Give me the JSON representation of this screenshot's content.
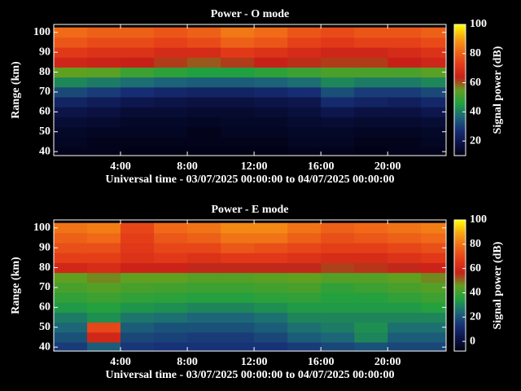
{
  "chart_data": [
    {
      "type": "heatmap",
      "title": "Power - O mode",
      "xlabel": "Universal time - 03/07/2025 00:00:00 to 04/07/2025 00:00:00",
      "ylabel": "Range (km)",
      "colorbar_label": "Signal power (dB)",
      "x": [
        1,
        3,
        5,
        7,
        9,
        11,
        13,
        15,
        17,
        19,
        21,
        23
      ],
      "y": [
        40,
        45,
        50,
        55,
        60,
        65,
        70,
        75,
        80,
        85,
        90,
        95,
        100
      ],
      "z": [
        [
          12,
          12,
          11,
          11,
          11,
          11,
          11,
          12,
          12,
          11,
          12,
          12
        ],
        [
          13,
          12,
          12,
          12,
          12,
          12,
          12,
          13,
          13,
          12,
          12,
          13
        ],
        [
          14,
          13,
          13,
          13,
          12,
          13,
          13,
          14,
          14,
          13,
          13,
          14
        ],
        [
          16,
          15,
          14,
          14,
          13,
          14,
          14,
          15,
          16,
          15,
          15,
          16
        ],
        [
          19,
          18,
          16,
          16,
          15,
          15,
          16,
          17,
          20,
          18,
          18,
          20
        ],
        [
          24,
          22,
          20,
          19,
          18,
          18,
          19,
          20,
          26,
          24,
          23,
          25
        ],
        [
          32,
          30,
          27,
          25,
          24,
          24,
          25,
          27,
          33,
          30,
          30,
          32
        ],
        [
          42,
          40,
          38,
          36,
          35,
          35,
          36,
          38,
          42,
          40,
          40,
          42
        ],
        [
          55,
          54,
          50,
          48,
          46,
          46,
          48,
          50,
          52,
          52,
          52,
          54
        ],
        [
          66,
          65,
          64,
          62,
          60,
          62,
          64,
          63,
          62,
          62,
          64,
          66
        ],
        [
          72,
          70,
          70,
          68,
          68,
          72,
          70,
          68,
          66,
          66,
          68,
          70
        ],
        [
          78,
          76,
          76,
          74,
          76,
          80,
          78,
          74,
          72,
          74,
          74,
          76
        ],
        [
          82,
          80,
          80,
          78,
          80,
          84,
          82,
          78,
          76,
          78,
          78,
          80
        ]
      ],
      "xlim": [
        0,
        23.5
      ],
      "ylim": [
        38,
        104
      ],
      "xticks": [
        {
          "value": 4,
          "label": "4:00"
        },
        {
          "value": 8,
          "label": "8:00"
        },
        {
          "value": 12,
          "label": "12:00"
        },
        {
          "value": 16,
          "label": "16:00"
        },
        {
          "value": 20,
          "label": "20:00"
        }
      ],
      "yticks": [
        40,
        50,
        60,
        70,
        80,
        90,
        100
      ],
      "clim": [
        10,
        100
      ],
      "cticks": [
        20,
        40,
        60,
        80,
        100
      ],
      "colors": [
        "#000010",
        "#0c1448",
        "#183078",
        "#1c6878",
        "#20a040",
        "#60a020",
        "#c82018",
        "#e43c18",
        "#f06a18",
        "#f8a410",
        "#ffff00"
      ]
    },
    {
      "type": "heatmap",
      "title": "Power - E mode",
      "xlabel": "Universal time - 03/07/2025 00:00:00 to 04/07/2025 00:00:00",
      "ylabel": "Range (km)",
      "colorbar_label": "Signal power (dB)",
      "x": [
        1,
        3,
        5,
        7,
        9,
        11,
        13,
        15,
        17,
        19,
        21,
        23
      ],
      "y": [
        40,
        45,
        50,
        55,
        60,
        65,
        70,
        75,
        80,
        85,
        90,
        95,
        100
      ],
      "z": [
        [
          16,
          22,
          15,
          14,
          14,
          14,
          14,
          16,
          18,
          20,
          18,
          18
        ],
        [
          20,
          60,
          18,
          17,
          16,
          16,
          18,
          22,
          24,
          30,
          22,
          22
        ],
        [
          24,
          70,
          22,
          20,
          20,
          20,
          22,
          26,
          28,
          32,
          26,
          26
        ],
        [
          28,
          32,
          27,
          26,
          24,
          24,
          26,
          30,
          30,
          30,
          30,
          30
        ],
        [
          34,
          36,
          33,
          32,
          30,
          30,
          32,
          34,
          34,
          34,
          34,
          36
        ],
        [
          38,
          40,
          38,
          37,
          36,
          36,
          37,
          38,
          36,
          36,
          38,
          40
        ],
        [
          42,
          44,
          42,
          41,
          40,
          40,
          41,
          42,
          38,
          40,
          42,
          44
        ],
        [
          46,
          48,
          46,
          46,
          44,
          44,
          45,
          46,
          44,
          44,
          46,
          48
        ],
        [
          60,
          62,
          58,
          58,
          56,
          56,
          56,
          56,
          54,
          55,
          56,
          58
        ],
        [
          68,
          68,
          64,
          66,
          64,
          66,
          66,
          64,
          62,
          62,
          64,
          66
        ],
        [
          72,
          72,
          66,
          70,
          70,
          74,
          72,
          70,
          68,
          68,
          70,
          72
        ],
        [
          76,
          78,
          68,
          74,
          76,
          80,
          80,
          76,
          72,
          74,
          76,
          78
        ],
        [
          80,
          82,
          70,
          78,
          80,
          84,
          84,
          80,
          76,
          78,
          80,
          82
        ]
      ],
      "xlim": [
        0,
        23.5
      ],
      "ylim": [
        38,
        104
      ],
      "xticks": [
        {
          "value": 4,
          "label": "4:00"
        },
        {
          "value": 8,
          "label": "8:00"
        },
        {
          "value": 12,
          "label": "12:00"
        },
        {
          "value": 16,
          "label": "16:00"
        },
        {
          "value": 20,
          "label": "20:00"
        }
      ],
      "yticks": [
        40,
        50,
        60,
        70,
        80,
        90,
        100
      ],
      "clim": [
        -8,
        100
      ],
      "cticks": [
        0,
        20,
        40,
        60,
        80,
        100
      ],
      "colors": [
        "#000010",
        "#0c1448",
        "#183078",
        "#1c6878",
        "#20a040",
        "#60a020",
        "#c82018",
        "#e43c18",
        "#f06a18",
        "#f8a410",
        "#ffff00"
      ]
    }
  ]
}
